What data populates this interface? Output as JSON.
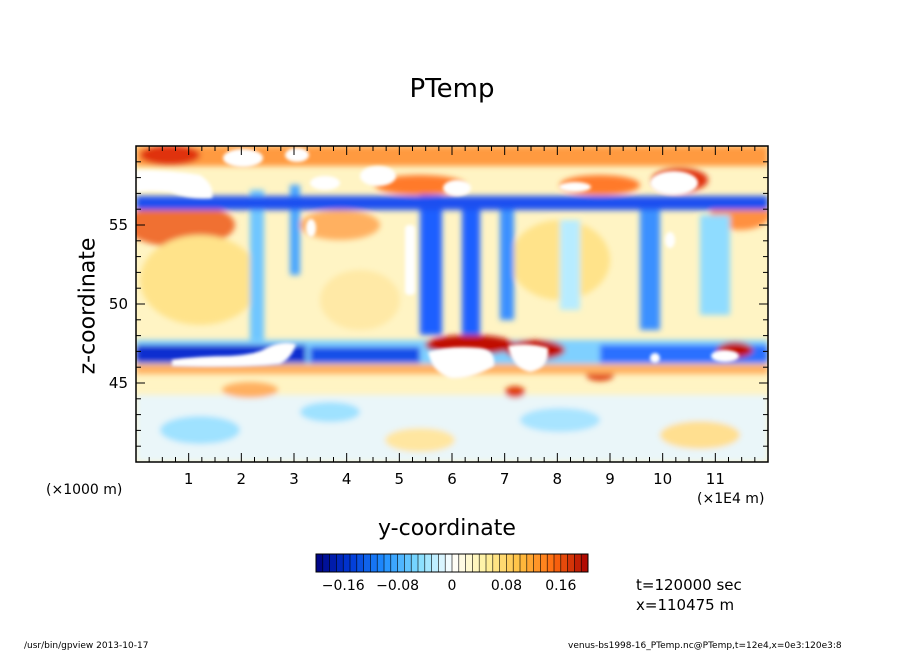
{
  "chart_data": {
    "type": "heatmap",
    "title": "PTemp",
    "xlabel": "y-coordinate",
    "ylabel": "z-coordinate",
    "x_unit_left": "(×1000 m)",
    "x_unit_right": "(×1E4 m)",
    "xlim": [
      0,
      12
    ],
    "ylim": [
      40,
      60
    ],
    "x_ticks": [
      1,
      2,
      3,
      4,
      5,
      6,
      7,
      8,
      9,
      10,
      11
    ],
    "y_ticks": [
      45,
      50,
      55
    ],
    "colorbar": {
      "range": [
        -0.2,
        0.2
      ],
      "ticks": [
        -0.16,
        -0.08,
        0,
        0.08,
        0.16
      ],
      "tick_labels": [
        "−0.16",
        "−0.08",
        "0",
        "0.08",
        "0.16"
      ],
      "colors_low_to_high": [
        "#00007f",
        "#0037d6",
        "#1f8fff",
        "#7fdcff",
        "#ffffff",
        "#fff2a0",
        "#ffbf40",
        "#ff6a10",
        "#a80000"
      ]
    },
    "features": [
      {
        "y": 6.8,
        "z": 46.9,
        "value": 0.2
      },
      {
        "y": 4.3,
        "z": 46.2,
        "value": -0.17
      },
      {
        "y": 1.0,
        "z": 54.8,
        "value": 0.14
      },
      {
        "y": 11.6,
        "z": 47.0,
        "value": 0.2
      }
    ]
  },
  "annotations": {
    "time": "t=120000 sec",
    "xpos": "x=110475 m"
  },
  "footer": {
    "left": "/usr/bin/gpview   2013-10-17",
    "right": "venus-bs1998-16_PTemp.nc@PTemp,t=12e4,x=0e3:120e3:8"
  }
}
